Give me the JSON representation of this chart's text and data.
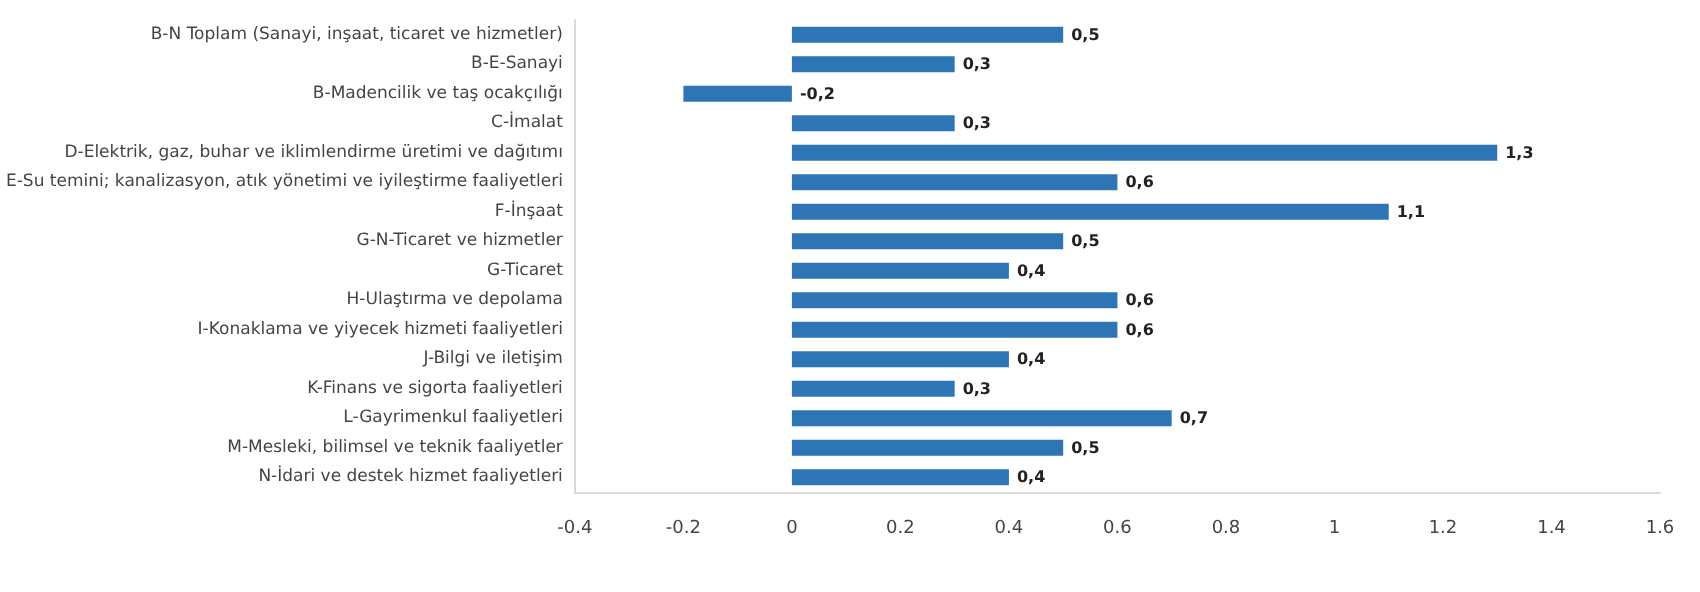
{
  "chart_data": {
    "type": "bar",
    "orientation": "horizontal",
    "categories": [
      "B-N Toplam (Sanayi, inşaat, ticaret ve hizmetler)",
      "B-E-Sanayi",
      "B-Madencilik ve taş ocakçılığı",
      "C-İmalat",
      "D-Elektrik, gaz, buhar ve iklimlendirme üretimi ve dağıtımı",
      "E-Su temini; kanalizasyon, atık yönetimi ve iyileştirme faaliyetleri",
      "F-İnşaat",
      "G-N-Ticaret ve hizmetler",
      "G-Ticaret",
      "H-Ulaştırma ve depolama",
      "I-Konaklama ve yiyecek hizmeti faaliyetleri",
      "J-Bilgi ve iletişim",
      "K-Finans ve sigorta faaliyetleri",
      "L-Gayrimenkul faaliyetleri",
      "M-Mesleki, bilimsel ve teknik faaliyetler",
      "N-İdari ve destek hizmet faaliyetleri"
    ],
    "values": [
      0.5,
      0.3,
      -0.2,
      0.3,
      1.3,
      0.6,
      1.1,
      0.5,
      0.4,
      0.6,
      0.6,
      0.4,
      0.3,
      0.7,
      0.5,
      0.4
    ],
    "value_labels": [
      "0,5",
      "0,3",
      "-0,2",
      "0,3",
      "1,3",
      "0,6",
      "1,1",
      "0,5",
      "0,4",
      "0,6",
      "0,6",
      "0,4",
      "0,3",
      "0,7",
      "0,5",
      "0,4"
    ],
    "color": "#2e75b6",
    "xlim": [
      -0.4,
      1.6
    ],
    "xticks": [
      -0.4,
      -0.2,
      0,
      0.2,
      0.4,
      0.6,
      0.8,
      1,
      1.2,
      1.4,
      1.6
    ],
    "grid": false
  }
}
